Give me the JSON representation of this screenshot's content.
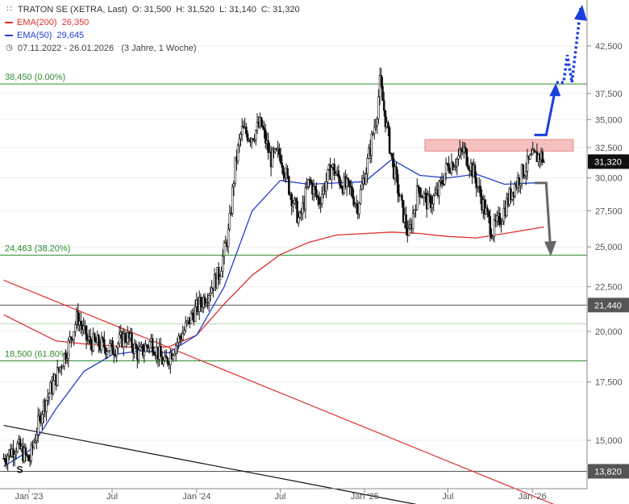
{
  "legend": {
    "title": "TRATON SE (XETRA, Last)",
    "ohlc": {
      "o_label": "O:",
      "o": "31,500",
      "h_label": "H:",
      "h": "31,520",
      "l_label": "L:",
      "l": "31,140",
      "c_label": "C:",
      "c": "31,320"
    },
    "ema200": {
      "label": "EMA(200)",
      "value": "26,350"
    },
    "ema50": {
      "label": "EMA(50)",
      "value": "29,645"
    },
    "range": "07.11.2022 - 26.01.2026",
    "span": "(3 Jahre, 1 Woche)"
  },
  "chart_data": {
    "type": "candlestick",
    "y_scale": "log",
    "ylim": [
      13.2,
      48
    ],
    "y_ticks": [
      42.5,
      37.5,
      35.0,
      32.5,
      30.0,
      27.5,
      25.0,
      22.5,
      20.0,
      17.5,
      15.0
    ],
    "y_tick_labels": [
      "42,500",
      "37,500",
      "35,000",
      "32,500",
      "30,000",
      "27,500",
      "25,000",
      "22,500",
      "20,000",
      "17,500",
      "15,000"
    ],
    "x_range": [
      "2022-11-07",
      "2026-01-26"
    ],
    "x_ticks": [
      {
        "date": "2023-01-01",
        "label": "Jan '23"
      },
      {
        "date": "2023-07-01",
        "label": "Jul"
      },
      {
        "date": "2024-01-01",
        "label": "Jan '24"
      },
      {
        "date": "2024-07-01",
        "label": "Jul"
      },
      {
        "date": "2025-01-01",
        "label": "Jan '25"
      },
      {
        "date": "2025-07-01",
        "label": "Jul"
      },
      {
        "date": "2026-01-01",
        "label": "Jan '26"
      }
    ],
    "price_points": [
      [
        "2022-11-07",
        14.3
      ],
      [
        "2022-12-05",
        14.8
      ],
      [
        "2023-01-02",
        14.2
      ],
      [
        "2023-01-30",
        16.3
      ],
      [
        "2023-02-27",
        17.6
      ],
      [
        "2023-03-27",
        19.2
      ],
      [
        "2023-04-17",
        20.8
      ],
      [
        "2023-05-08",
        19.5
      ],
      [
        "2023-06-05",
        19.3
      ],
      [
        "2023-07-03",
        19.1
      ],
      [
        "2023-07-31",
        19.8
      ],
      [
        "2023-08-28",
        18.8
      ],
      [
        "2023-09-25",
        19.5
      ],
      [
        "2023-10-23",
        18.3
      ],
      [
        "2023-11-13",
        19.2
      ],
      [
        "2023-12-04",
        20.0
      ],
      [
        "2023-12-25",
        21.0
      ],
      [
        "2024-01-22",
        22.0
      ],
      [
        "2024-02-19",
        23.3
      ],
      [
        "2024-03-11",
        26.0
      ],
      [
        "2024-03-25",
        31.0
      ],
      [
        "2024-04-08",
        34.0
      ],
      [
        "2024-04-29",
        33.5
      ],
      [
        "2024-05-20",
        34.6
      ],
      [
        "2024-06-10",
        31.5
      ],
      [
        "2024-07-01",
        32.0
      ],
      [
        "2024-07-22",
        29.0
      ],
      [
        "2024-08-12",
        26.7
      ],
      [
        "2024-09-02",
        29.8
      ],
      [
        "2024-09-23",
        28.2
      ],
      [
        "2024-10-21",
        30.9
      ],
      [
        "2024-11-11",
        29.6
      ],
      [
        "2024-12-02",
        29.0
      ],
      [
        "2024-12-16",
        27.8
      ],
      [
        "2025-01-06",
        31.0
      ],
      [
        "2025-01-27",
        35.5
      ],
      [
        "2025-02-03",
        38.5
      ],
      [
        "2025-02-17",
        34.5
      ],
      [
        "2025-03-03",
        31.0
      ],
      [
        "2025-03-24",
        27.5
      ],
      [
        "2025-04-07",
        25.7
      ],
      [
        "2025-04-28",
        29.3
      ],
      [
        "2025-05-19",
        28.0
      ],
      [
        "2025-06-09",
        28.8
      ],
      [
        "2025-06-30",
        31.0
      ],
      [
        "2025-07-21",
        31.5
      ],
      [
        "2025-08-04",
        32.3
      ],
      [
        "2025-08-25",
        30.5
      ],
      [
        "2025-09-15",
        28.0
      ],
      [
        "2025-10-06",
        26.0
      ],
      [
        "2025-10-27",
        27.2
      ],
      [
        "2025-11-17",
        29.0
      ],
      [
        "2025-12-08",
        30.3
      ],
      [
        "2025-12-29",
        31.5
      ],
      [
        "2026-01-19",
        31.9
      ],
      [
        "2026-01-26",
        31.32
      ]
    ],
    "series": [
      {
        "name": "EMA(200)",
        "color": "#e03030",
        "points": [
          [
            "2022-11-07",
            20.9
          ],
          [
            "2023-01-02",
            20.2
          ],
          [
            "2023-03-01",
            19.5
          ],
          [
            "2023-05-01",
            19.35
          ],
          [
            "2023-07-01",
            19.25
          ],
          [
            "2023-09-01",
            19.15
          ],
          [
            "2023-11-01",
            19.2
          ],
          [
            "2024-01-01",
            19.8
          ],
          [
            "2024-03-01",
            21.5
          ],
          [
            "2024-05-01",
            23.2
          ],
          [
            "2024-07-01",
            24.5
          ],
          [
            "2024-09-01",
            25.3
          ],
          [
            "2024-11-01",
            25.8
          ],
          [
            "2025-01-01",
            25.9
          ],
          [
            "2025-03-01",
            26.0
          ],
          [
            "2025-05-01",
            25.9
          ],
          [
            "2025-07-01",
            25.7
          ],
          [
            "2025-09-01",
            25.6
          ],
          [
            "2025-11-01",
            25.9
          ],
          [
            "2026-01-26",
            26.35
          ]
        ]
      },
      {
        "name": "EMA(50)",
        "color": "#2040d0",
        "points": [
          [
            "2022-11-07",
            14.0
          ],
          [
            "2023-01-02",
            14.6
          ],
          [
            "2023-03-01",
            16.3
          ],
          [
            "2023-05-01",
            18.0
          ],
          [
            "2023-07-01",
            18.8
          ],
          [
            "2023-09-01",
            19.0
          ],
          [
            "2023-11-01",
            18.9
          ],
          [
            "2024-01-01",
            19.8
          ],
          [
            "2024-03-01",
            22.5
          ],
          [
            "2024-05-01",
            27.5
          ],
          [
            "2024-07-01",
            29.8
          ],
          [
            "2024-09-01",
            29.5
          ],
          [
            "2024-11-01",
            29.6
          ],
          [
            "2025-01-01",
            29.7
          ],
          [
            "2025-03-01",
            31.5
          ],
          [
            "2025-05-01",
            30.2
          ],
          [
            "2025-07-01",
            30.0
          ],
          [
            "2025-09-01",
            30.3
          ],
          [
            "2025-11-01",
            29.5
          ],
          [
            "2026-01-26",
            29.645
          ]
        ]
      }
    ],
    "horizontal_lines": [
      {
        "value": 38.45,
        "label": "38,450 (0.00%)",
        "color": "#2e8b2e"
      },
      {
        "value": 24.463,
        "label": "24,463 (38.20%)",
        "color": "#2e8b2e"
      },
      {
        "value": 18.5,
        "label": "18,500 (61.80%)",
        "color": "#2e8b2e"
      },
      {
        "value": 21.44,
        "tag": "21,440",
        "color": "#555555"
      },
      {
        "value": 13.82,
        "tag": "13,820",
        "color": "#555555"
      },
      {
        "value": 20.4,
        "color": "#b8dcb8"
      }
    ],
    "last_price_tag": {
      "value": 31.32,
      "tag": "31,320"
    },
    "resistance_zone": {
      "from": "2025-05-12",
      "to": "2026-03-31",
      "low": 32.2,
      "high": 33.2,
      "color": "#f5b5b5"
    },
    "trend_lines": [
      {
        "color": "#e03030",
        "from": [
          "2022-11-07",
          22.9
        ],
        "to": [
          "2026-03-31",
          12.4
        ]
      },
      {
        "color": "#111111",
        "from": [
          "2022-11-07",
          15.6
        ],
        "to": [
          "2025-05-15",
          12.6
        ]
      }
    ],
    "annotations": {
      "blue_solid_arrow": [
        [
          "2026-01-05",
          33.6
        ],
        [
          "2026-01-31",
          33.6
        ],
        [
          "2026-02-21",
          38.2
        ]
      ],
      "blue_dotted_arrow": [
        [
          "2026-02-22",
          38.6
        ],
        [
          "2026-03-10",
          38.6
        ],
        [
          "2026-03-18",
          41.5
        ],
        [
          "2026-03-28",
          38.6
        ],
        [
          "2026-04-16",
          47.0
        ]
      ],
      "gray_arrow": [
        [
          "2026-01-06",
          29.6
        ],
        [
          "2026-01-31",
          29.6
        ],
        [
          "2026-02-10",
          24.6
        ]
      ],
      "pivot_marker": {
        "date": "2022-12-12",
        "value": 13.82,
        "text": "S"
      }
    }
  }
}
